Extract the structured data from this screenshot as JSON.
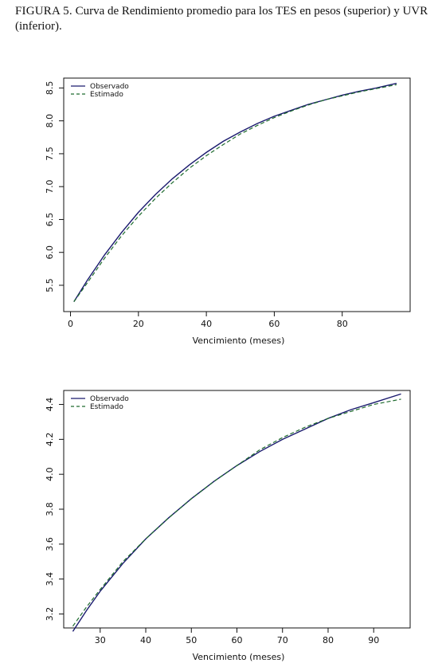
{
  "caption": {
    "label": "FIGURA 5.",
    "text": "Curva de Rendimiento promedio para los TES en pesos (superior) y UVR (inferior)."
  },
  "colors": {
    "observado": "#1a1a6e",
    "estimado": "#1e6b2e"
  },
  "chart_data": [
    {
      "type": "line",
      "xlabel": "Vencimiento (meses)",
      "ylabel": "",
      "xlim": [
        -2,
        100
      ],
      "ylim": [
        5.1,
        8.65
      ],
      "xticks": [
        0,
        20,
        40,
        60,
        80
      ],
      "yticks": [
        5.5,
        6.0,
        6.5,
        7.0,
        7.5,
        8.0,
        8.5
      ],
      "ytick_labels": [
        "5.5",
        "6.0",
        "6.5",
        "7.0",
        "7.5",
        "8.0",
        "8.5"
      ],
      "legend": {
        "position": "top-left",
        "entries": [
          "Observado",
          "Estimado"
        ]
      },
      "series": [
        {
          "name": "Observado",
          "style": "solid",
          "x": [
            1,
            5,
            10,
            15,
            20,
            25,
            30,
            35,
            40,
            45,
            50,
            55,
            60,
            65,
            70,
            75,
            80,
            85,
            90,
            96
          ],
          "y": [
            5.25,
            5.58,
            5.96,
            6.3,
            6.61,
            6.88,
            7.12,
            7.33,
            7.52,
            7.69,
            7.83,
            7.96,
            8.07,
            8.16,
            8.25,
            8.32,
            8.39,
            8.45,
            8.5,
            8.57
          ]
        },
        {
          "name": "Estimado",
          "style": "dashed",
          "x": [
            1,
            5,
            10,
            15,
            20,
            25,
            30,
            35,
            40,
            45,
            50,
            55,
            60,
            65,
            70,
            75,
            80,
            85,
            90,
            96
          ],
          "y": [
            5.25,
            5.54,
            5.91,
            6.25,
            6.55,
            6.82,
            7.06,
            7.28,
            7.47,
            7.64,
            7.8,
            7.93,
            8.05,
            8.15,
            8.24,
            8.32,
            8.38,
            8.44,
            8.49,
            8.55
          ]
        }
      ]
    },
    {
      "type": "line",
      "xlabel": "Vencimiento (meses)",
      "ylabel": "",
      "xlim": [
        22,
        98
      ],
      "ylim": [
        3.12,
        4.48
      ],
      "xticks": [
        30,
        40,
        50,
        60,
        70,
        80,
        90
      ],
      "yticks": [
        3.2,
        3.4,
        3.6,
        3.8,
        4.0,
        4.2,
        4.4
      ],
      "ytick_labels": [
        "3.2",
        "3.4",
        "3.6",
        "3.8",
        "4.0",
        "4.2",
        "4.4"
      ],
      "legend": {
        "position": "top-left",
        "entries": [
          "Observado",
          "Estimado"
        ]
      },
      "series": [
        {
          "name": "Observado",
          "style": "solid",
          "x": [
            24,
            27,
            30,
            35,
            40,
            45,
            50,
            55,
            60,
            65,
            70,
            75,
            80,
            85,
            90,
            96
          ],
          "y": [
            3.1,
            3.22,
            3.33,
            3.49,
            3.63,
            3.75,
            3.86,
            3.96,
            4.05,
            4.13,
            4.2,
            4.26,
            4.32,
            4.37,
            4.41,
            4.46
          ]
        },
        {
          "name": "Estimado",
          "style": "dashed",
          "x": [
            24,
            27,
            30,
            35,
            40,
            45,
            50,
            55,
            60,
            65,
            70,
            75,
            80,
            85,
            90,
            96
          ],
          "y": [
            3.13,
            3.24,
            3.34,
            3.5,
            3.63,
            3.75,
            3.86,
            3.96,
            4.05,
            4.14,
            4.21,
            4.27,
            4.32,
            4.36,
            4.4,
            4.43
          ]
        }
      ]
    }
  ]
}
